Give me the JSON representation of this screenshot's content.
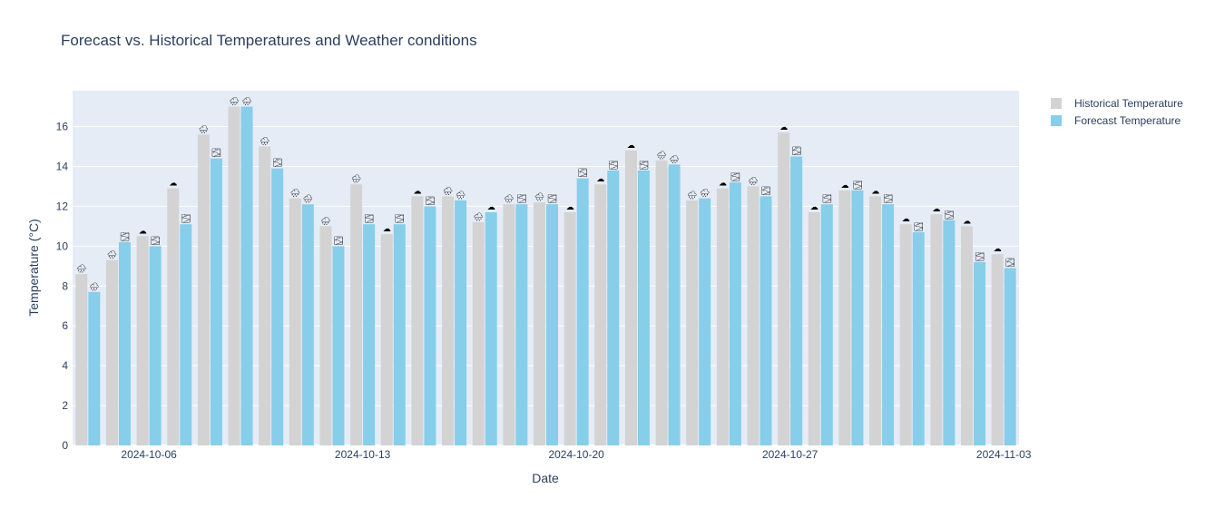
{
  "chart_data": {
    "type": "bar",
    "title": "Forecast vs. Historical Temperatures and Weather conditions",
    "xlabel": "Date",
    "ylabel": "Temperature (°C)",
    "ylim": [
      0,
      17.8
    ],
    "yticks": [
      0,
      2,
      4,
      6,
      8,
      10,
      12,
      14,
      16
    ],
    "xticks": [
      {
        "label": "2024-10-06",
        "index": 2
      },
      {
        "label": "2024-10-13",
        "index": 9
      },
      {
        "label": "2024-10-20",
        "index": 16
      },
      {
        "label": "2024-10-27",
        "index": 23
      },
      {
        "label": "2024-11-03",
        "index": 30
      }
    ],
    "grid": true,
    "legend_position": "top-right",
    "categories": [
      "2024-10-04",
      "2024-10-05",
      "2024-10-06",
      "2024-10-07",
      "2024-10-08",
      "2024-10-09",
      "2024-10-10",
      "2024-10-11",
      "2024-10-12",
      "2024-10-13",
      "2024-10-14",
      "2024-10-15",
      "2024-10-16",
      "2024-10-17",
      "2024-10-18",
      "2024-10-19",
      "2024-10-20",
      "2024-10-21",
      "2024-10-22",
      "2024-10-23",
      "2024-10-24",
      "2024-10-25",
      "2024-10-26",
      "2024-10-27",
      "2024-10-28",
      "2024-10-29",
      "2024-10-30",
      "2024-10-31",
      "2024-11-01",
      "2024-11-02",
      "2024-11-03"
    ],
    "series": [
      {
        "name": "Historical Temperature",
        "color": "#d3d3d3",
        "values": [
          8.6,
          9.3,
          10.5,
          12.9,
          15.6,
          17.0,
          15.0,
          12.4,
          11.0,
          13.1,
          10.6,
          12.5,
          12.5,
          11.2,
          12.1,
          12.2,
          11.7,
          13.1,
          14.8,
          14.3,
          12.3,
          12.9,
          13.0,
          15.7,
          11.7,
          12.8,
          12.5,
          11.1,
          11.6,
          11.0,
          9.6
        ],
        "conditions": [
          "🌧",
          "🌧",
          "☁",
          "☁",
          "🌧",
          "🌧",
          "🌧",
          "🌧",
          "🌧",
          "🌧",
          "☁",
          "☁",
          "🌧",
          "🌧",
          "🌧",
          "🌧",
          "☁",
          "☁",
          "☁",
          "🌧",
          "🌧",
          "☁",
          "🌧",
          "☁",
          "☁",
          "☁",
          "☁",
          "☁",
          "☁",
          "☁",
          "☁"
        ]
      },
      {
        "name": "Forecast Temperature",
        "color": "#87ceeb",
        "values": [
          7.7,
          10.2,
          10.0,
          11.1,
          14.4,
          17.0,
          13.9,
          12.1,
          10.0,
          11.1,
          11.1,
          12.0,
          12.3,
          11.7,
          12.1,
          12.1,
          13.4,
          13.8,
          13.8,
          14.1,
          12.4,
          13.2,
          12.5,
          14.5,
          12.1,
          12.8,
          12.1,
          10.7,
          11.3,
          9.2,
          8.9
        ],
        "conditions": [
          "🌧",
          "🌫",
          "🌫",
          "🌫",
          "🌫",
          "🌧",
          "🌫",
          "🌧",
          "🌫",
          "🌫",
          "🌫",
          "🌫",
          "🌧",
          "☁",
          "🌫",
          "🌫",
          "🌫",
          "🌫",
          "🌫",
          "🌧",
          "🌧",
          "🌫",
          "🌫",
          "🌫",
          "🌫",
          "🌫",
          "🌫",
          "🌫",
          "🌫",
          "🌫",
          "🌫"
        ]
      }
    ]
  }
}
